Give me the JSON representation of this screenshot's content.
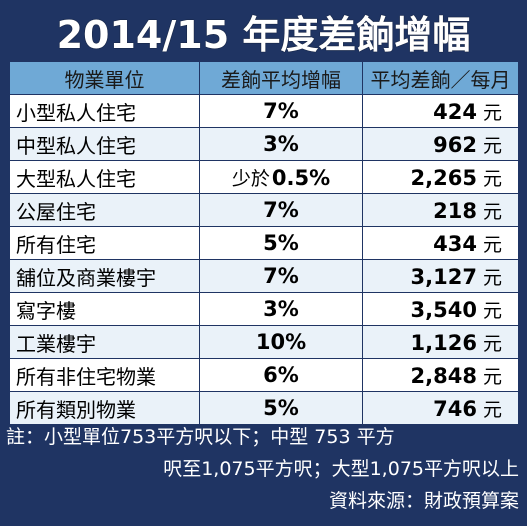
{
  "chart_data": {
    "type": "table",
    "title": "2014/15 年度差餉增幅",
    "columns": [
      "物業單位",
      "差餉平均增幅",
      "平均差餉／每月"
    ],
    "rows": [
      {
        "name": "小型私人住宅",
        "rate_prefix": "",
        "rate": "7%",
        "amount": "424",
        "unit": "元"
      },
      {
        "name": "中型私人住宅",
        "rate_prefix": "",
        "rate": "3%",
        "amount": "962",
        "unit": "元"
      },
      {
        "name": "大型私人住宅",
        "rate_prefix": "少於",
        "rate": "0.5%",
        "amount": "2,265",
        "unit": "元"
      },
      {
        "name": "公屋住宅",
        "rate_prefix": "",
        "rate": "7%",
        "amount": "218",
        "unit": "元"
      },
      {
        "name": "所有住宅",
        "rate_prefix": "",
        "rate": "5%",
        "amount": "434",
        "unit": "元"
      },
      {
        "name": "舖位及商業樓宇",
        "rate_prefix": "",
        "rate": "7%",
        "amount": "3,127",
        "unit": "元"
      },
      {
        "name": "寫字樓",
        "rate_prefix": "",
        "rate": "3%",
        "amount": "3,540",
        "unit": "元"
      },
      {
        "name": "工業樓宇",
        "rate_prefix": "",
        "rate": "10%",
        "amount": "1,126",
        "unit": "元"
      },
      {
        "name": "所有非住宅物業",
        "rate_prefix": "",
        "rate": "6%",
        "amount": "2,848",
        "unit": "元"
      },
      {
        "name": "所有類別物業",
        "rate_prefix": "",
        "rate": "5%",
        "amount": "746",
        "unit": "元"
      }
    ]
  },
  "notes": {
    "line1": "註：小型單位753平方呎以下；中型 753 平方",
    "line2": "呎至1,075平方呎；大型1,075平方呎以上",
    "line3": "資料來源：財政預算案"
  },
  "colors": {
    "background": "#1f3463",
    "header": "#6fa9d6",
    "row_alt": "#eaf2f9"
  }
}
